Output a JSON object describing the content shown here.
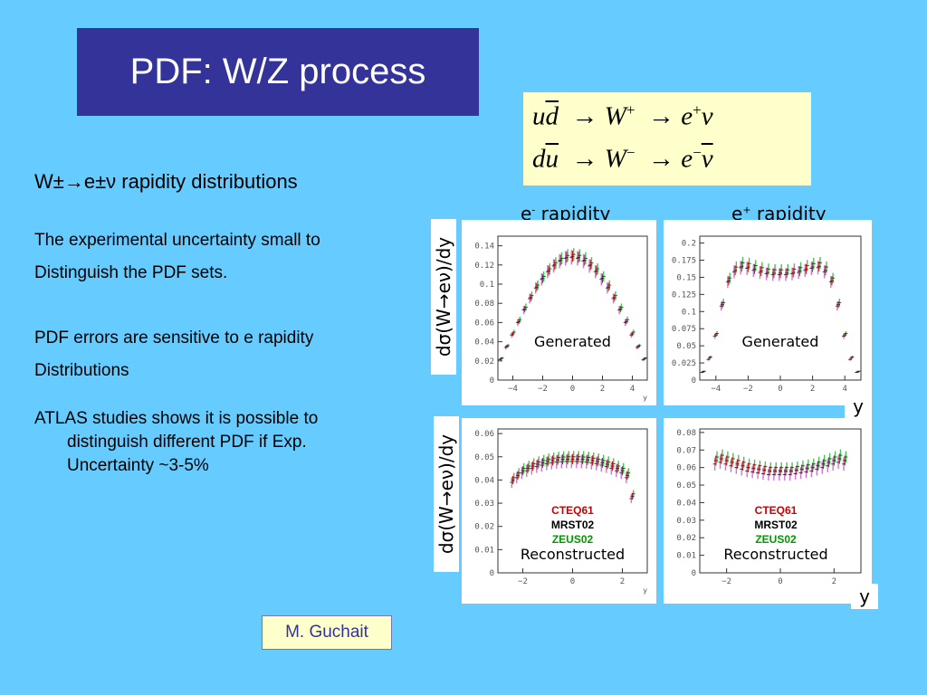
{
  "title": "PDF: W/Z process",
  "equations": {
    "line1": {
      "q1": "u",
      "q2": "d",
      "w": "W",
      "wcharge": "+",
      "e": "e",
      "echarge": "+",
      "nu": "ν"
    },
    "line2": {
      "q1": "d",
      "q2": "u",
      "w": "W",
      "wcharge": "−",
      "e": "e",
      "echarge": "−",
      "nu": "ν"
    },
    "arrow": "→"
  },
  "subtitle": "W±→e±ν rapidity distributions",
  "paragraphs": {
    "p1_l1": "The experimental uncertainty small to",
    "p1_l2": "Distinguish the PDF sets.",
    "p2_l1": "PDF errors are sensitive to e rapidity",
    "p2_l2": "Distributions",
    "p3_lead": "ATLAS studies shows it is possible to",
    "p3_l2": "distinguish different PDF if Exp.",
    "p3_l3": "Uncertainty ~3-5%"
  },
  "author": "M. Guchait",
  "labels": {
    "eminus_base": "e",
    "eminus_sup": "-",
    "eminus_rest": " rapidity",
    "eplus_base": "e",
    "eplus_sup": "+",
    "eplus_rest": " rapidity",
    "ylabel": "dσ(W→eν)/dy",
    "y": "y"
  },
  "colors": {
    "background": "#66CCFF",
    "title_box": "#333399",
    "equation_box": "#FFFFCC",
    "CTEQ61": "#CC0000",
    "MRST02": "#000000",
    "ZEUS02": "#009900",
    "band_green": "#33BB44",
    "band_magenta": "#CC66CC"
  },
  "chart_data": [
    {
      "type": "line",
      "panel": "e- rapidity, Generated",
      "annotation": "Generated",
      "xlabel": "y",
      "xlim": [
        -5,
        5
      ],
      "ylim": [
        0,
        0.15
      ],
      "xticks": [
        -4,
        -2,
        0,
        2,
        4
      ],
      "yticks": [
        0,
        0.02,
        0.04,
        0.06,
        0.08,
        0.1,
        0.12,
        0.14
      ],
      "x": [
        -4.8,
        -4.4,
        -4.0,
        -3.6,
        -3.2,
        -2.8,
        -2.4,
        -2.0,
        -1.6,
        -1.2,
        -0.8,
        -0.4,
        0.0,
        0.4,
        0.8,
        1.2,
        1.6,
        2.0,
        2.4,
        2.8,
        3.2,
        3.6,
        4.0,
        4.4,
        4.8
      ],
      "series": [
        {
          "name": "CTEQ61",
          "values": [
            0.022,
            0.035,
            0.048,
            0.061,
            0.074,
            0.086,
            0.097,
            0.106,
            0.114,
            0.12,
            0.125,
            0.128,
            0.129,
            0.128,
            0.125,
            0.12,
            0.114,
            0.106,
            0.097,
            0.086,
            0.074,
            0.061,
            0.048,
            0.035,
            0.022
          ]
        },
        {
          "name": "MRST02",
          "values": [
            0.021,
            0.034,
            0.047,
            0.06,
            0.073,
            0.085,
            0.096,
            0.105,
            0.113,
            0.119,
            0.124,
            0.127,
            0.128,
            0.127,
            0.124,
            0.119,
            0.113,
            0.105,
            0.096,
            0.085,
            0.073,
            0.06,
            0.047,
            0.034,
            0.021
          ]
        },
        {
          "name": "ZEUS02",
          "values": [
            0.023,
            0.036,
            0.05,
            0.063,
            0.076,
            0.088,
            0.099,
            0.108,
            0.116,
            0.122,
            0.127,
            0.13,
            0.131,
            0.13,
            0.127,
            0.122,
            0.116,
            0.108,
            0.099,
            0.088,
            0.076,
            0.063,
            0.05,
            0.036,
            0.023
          ]
        }
      ]
    },
    {
      "type": "line",
      "panel": "e+ rapidity, Generated",
      "annotation": "Generated",
      "xlabel": "y",
      "xlim": [
        -5,
        5
      ],
      "ylim": [
        0,
        0.21
      ],
      "xticks": [
        -4,
        -2,
        0,
        2,
        4
      ],
      "yticks": [
        0,
        0.025,
        0.05,
        0.075,
        0.1,
        0.125,
        0.15,
        0.175,
        0.2
      ],
      "x": [
        -4.8,
        -4.4,
        -4.0,
        -3.6,
        -3.2,
        -2.8,
        -2.4,
        -2.0,
        -1.6,
        -1.2,
        -0.8,
        -0.4,
        0.0,
        0.4,
        0.8,
        1.2,
        1.6,
        2.0,
        2.4,
        2.8,
        3.2,
        3.6,
        4.0,
        4.4,
        4.8
      ],
      "series": [
        {
          "name": "CTEQ61",
          "values": [
            0.012,
            0.032,
            0.066,
            0.11,
            0.145,
            0.16,
            0.166,
            0.165,
            0.162,
            0.159,
            0.157,
            0.156,
            0.156,
            0.156,
            0.157,
            0.159,
            0.162,
            0.165,
            0.166,
            0.16,
            0.145,
            0.11,
            0.066,
            0.032,
            0.012
          ]
        },
        {
          "name": "MRST02",
          "values": [
            0.011,
            0.03,
            0.064,
            0.108,
            0.143,
            0.158,
            0.164,
            0.163,
            0.16,
            0.157,
            0.155,
            0.154,
            0.154,
            0.154,
            0.155,
            0.157,
            0.16,
            0.163,
            0.164,
            0.158,
            0.143,
            0.108,
            0.064,
            0.03,
            0.011
          ]
        },
        {
          "name": "ZEUS02",
          "values": [
            0.013,
            0.034,
            0.068,
            0.113,
            0.149,
            0.165,
            0.171,
            0.17,
            0.167,
            0.164,
            0.162,
            0.161,
            0.161,
            0.161,
            0.162,
            0.164,
            0.167,
            0.17,
            0.171,
            0.165,
            0.149,
            0.113,
            0.068,
            0.034,
            0.013
          ]
        }
      ]
    },
    {
      "type": "line",
      "panel": "e- rapidity, Reconstructed",
      "annotation": "Reconstructed",
      "xlabel": "y",
      "xlim": [
        -3,
        3
      ],
      "ylim": [
        0,
        0.062
      ],
      "xticks": [
        -2,
        0,
        2
      ],
      "yticks": [
        0,
        0.01,
        0.02,
        0.03,
        0.04,
        0.05,
        0.06
      ],
      "legend": [
        "CTEQ61",
        "MRST02",
        "ZEUS02"
      ],
      "x": [
        -2.4,
        -2.2,
        -2.0,
        -1.8,
        -1.6,
        -1.4,
        -1.2,
        -1.0,
        -0.8,
        -0.6,
        -0.4,
        -0.2,
        0.0,
        0.2,
        0.4,
        0.6,
        0.8,
        1.0,
        1.2,
        1.4,
        1.6,
        1.8,
        2.0,
        2.2,
        2.4
      ],
      "series": [
        {
          "name": "CTEQ61",
          "values": [
            0.04,
            0.042,
            0.044,
            0.045,
            0.046,
            0.0468,
            0.0474,
            0.048,
            0.0484,
            0.0487,
            0.0489,
            0.049,
            0.049,
            0.049,
            0.0489,
            0.0487,
            0.0484,
            0.048,
            0.0474,
            0.0468,
            0.046,
            0.045,
            0.044,
            0.042,
            0.033
          ]
        },
        {
          "name": "MRST02",
          "values": [
            0.039,
            0.041,
            0.043,
            0.044,
            0.045,
            0.0458,
            0.0464,
            0.047,
            0.0474,
            0.0477,
            0.0479,
            0.048,
            0.048,
            0.048,
            0.0479,
            0.0477,
            0.0474,
            0.047,
            0.0464,
            0.0458,
            0.045,
            0.044,
            0.043,
            0.041,
            0.032
          ]
        },
        {
          "name": "ZEUS02",
          "values": [
            0.041,
            0.043,
            0.045,
            0.046,
            0.047,
            0.0478,
            0.0484,
            0.049,
            0.0494,
            0.0497,
            0.0499,
            0.05,
            0.05,
            0.05,
            0.0499,
            0.0497,
            0.0494,
            0.049,
            0.0484,
            0.0478,
            0.047,
            0.046,
            0.045,
            0.043,
            0.034
          ]
        }
      ]
    },
    {
      "type": "line",
      "panel": "e+ rapidity, Reconstructed",
      "annotation": "Reconstructed",
      "xlabel": "y",
      "xlim": [
        -3,
        3
      ],
      "ylim": [
        0,
        0.082
      ],
      "xticks": [
        -2,
        0,
        2
      ],
      "yticks": [
        0,
        0.01,
        0.02,
        0.03,
        0.04,
        0.05,
        0.06,
        0.07,
        0.08
      ],
      "legend": [
        "CTEQ61",
        "MRST02",
        "ZEUS02"
      ],
      "x": [
        -2.4,
        -2.2,
        -2.0,
        -1.8,
        -1.6,
        -1.4,
        -1.2,
        -1.0,
        -0.8,
        -0.6,
        -0.4,
        -0.2,
        0.0,
        0.2,
        0.4,
        0.6,
        0.8,
        1.0,
        1.2,
        1.4,
        1.6,
        1.8,
        2.0,
        2.2,
        2.4
      ],
      "series": [
        {
          "name": "CTEQ61",
          "values": [
            0.064,
            0.065,
            0.064,
            0.063,
            0.062,
            0.061,
            0.06,
            0.0595,
            0.059,
            0.0585,
            0.058,
            0.058,
            0.058,
            0.058,
            0.058,
            0.0585,
            0.059,
            0.0595,
            0.06,
            0.061,
            0.062,
            0.063,
            0.064,
            0.065,
            0.064
          ]
        },
        {
          "name": "MRST02",
          "values": [
            0.062,
            0.063,
            0.062,
            0.061,
            0.06,
            0.059,
            0.058,
            0.0575,
            0.057,
            0.0565,
            0.056,
            0.056,
            0.056,
            0.056,
            0.056,
            0.0565,
            0.057,
            0.0575,
            0.058,
            0.059,
            0.06,
            0.061,
            0.062,
            0.063,
            0.062
          ]
        },
        {
          "name": "ZEUS02",
          "values": [
            0.066,
            0.067,
            0.066,
            0.065,
            0.064,
            0.063,
            0.062,
            0.0615,
            0.061,
            0.0605,
            0.06,
            0.06,
            0.06,
            0.06,
            0.06,
            0.0605,
            0.061,
            0.0615,
            0.062,
            0.063,
            0.064,
            0.065,
            0.066,
            0.067,
            0.066
          ]
        }
      ]
    }
  ]
}
